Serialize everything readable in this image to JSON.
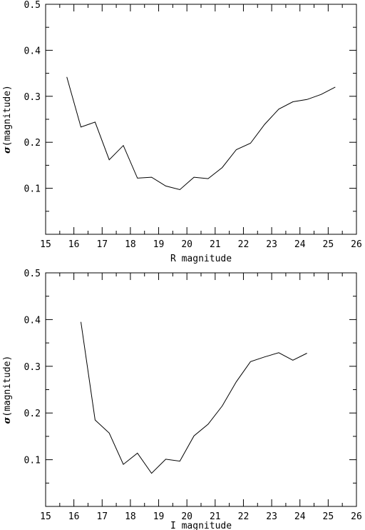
{
  "chart_data": [
    {
      "type": "line",
      "xlabel": "R magnitude",
      "ylabel": "(magnitude)",
      "ylabel_symbol": "σ",
      "xlim": [
        15,
        26
      ],
      "ylim": [
        0,
        0.5
      ],
      "xticks": [
        "15",
        "16",
        "17",
        "18",
        "19",
        "20",
        "21",
        "22",
        "23",
        "24",
        "25",
        "26"
      ],
      "yticks": [
        "0.1",
        "0.2",
        "0.3",
        "0.4",
        "0.5"
      ],
      "grid": false,
      "series": [
        {
          "x": [
            15.75,
            16.25,
            16.75,
            17.25,
            17.75,
            18.25,
            18.75,
            19.25,
            19.75,
            20.25,
            20.75,
            21.25,
            21.75,
            22.25,
            22.75,
            23.25,
            23.75,
            24.25,
            24.75,
            25.25
          ],
          "y": [
            0.342,
            0.233,
            0.244,
            0.162,
            0.193,
            0.122,
            0.124,
            0.105,
            0.097,
            0.124,
            0.121,
            0.145,
            0.184,
            0.198,
            0.239,
            0.272,
            0.288,
            0.293,
            0.304,
            0.32
          ]
        }
      ]
    },
    {
      "type": "line",
      "xlabel": "I magnitude",
      "ylabel": "(magnitude)",
      "ylabel_symbol": "σ",
      "xlim": [
        15,
        26
      ],
      "ylim": [
        0,
        0.5
      ],
      "xticks": [
        "15",
        "16",
        "17",
        "18",
        "19",
        "20",
        "21",
        "22",
        "23",
        "24",
        "25",
        "26"
      ],
      "yticks": [
        "0.1",
        "0.2",
        "0.3",
        "0.4",
        "0.5"
      ],
      "grid": false,
      "series": [
        {
          "x": [
            16.25,
            16.75,
            17.25,
            17.75,
            18.25,
            18.75,
            19.25,
            19.75,
            20.25,
            20.75,
            21.25,
            21.75,
            22.25,
            22.75,
            23.25,
            23.75,
            24.25
          ],
          "y": [
            0.395,
            0.185,
            0.157,
            0.09,
            0.114,
            0.071,
            0.101,
            0.097,
            0.151,
            0.176,
            0.215,
            0.267,
            0.31,
            0.32,
            0.329,
            0.313,
            0.328
          ]
        }
      ]
    }
  ]
}
